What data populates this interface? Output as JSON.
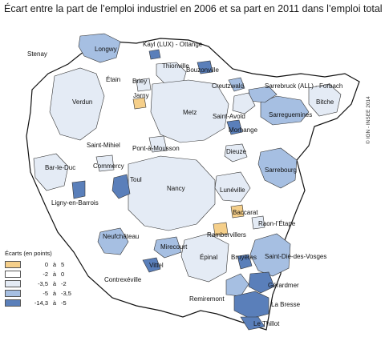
{
  "title": "Écart entre la part de l’emploi industriel en 2006 et sa part en 2011 dans l’emploi total",
  "credit": "© IGN - INSEE 2014",
  "colors": {
    "c1": "#f5cf8a",
    "c2": "#ffffff",
    "c3": "#e4ebf5",
    "c4": "#a6bfe2",
    "c5": "#5a7fba",
    "outline": "#111111"
  },
  "legend": {
    "title": "Écarts (en points)",
    "word": "à",
    "classes": [
      {
        "lo": "0",
        "hi": "5",
        "color_key": "c1"
      },
      {
        "lo": "-2",
        "hi": "0",
        "color_key": "c2"
      },
      {
        "lo": "-3,5",
        "hi": "-2",
        "color_key": "c3"
      },
      {
        "lo": "-5",
        "hi": "-3,5",
        "color_key": "c4"
      },
      {
        "lo": "-14,3",
        "hi": "-5",
        "color_key": "c5"
      }
    ]
  },
  "zones": [
    "Stenay",
    "Kayl (LUX) - Ottange",
    "Longwy",
    "Thionville",
    "Bouzonville",
    "Étain",
    "Briey",
    "Creutzwald",
    "Sarrebruck (ALL) - Forbach",
    "Verdun",
    "Jarny",
    "Metz",
    "Saint-Avold",
    "Sarreguemines",
    "Bitche",
    "Morhange",
    "Pont-à-Mousson",
    "Saint-Mihiel",
    "Dieuze",
    "Commercy",
    "Bar-le-Duc",
    "Sarrebourg",
    "Toul",
    "Nancy",
    "Lunéville",
    "Ligny-en-Barrois",
    "Baccarat",
    "Raon-l’Étape",
    "Rambervillers",
    "Neufchâteau",
    "Mirecourt",
    "Saint-Dié-des-Vosges",
    "Vittel",
    "Épinal",
    "Bruyères",
    "Contrexéville",
    "Gérardmer",
    "Remiremont",
    "La Bresse",
    "Le Thillot"
  ]
}
